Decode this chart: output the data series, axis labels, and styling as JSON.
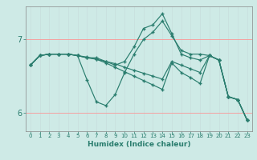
{
  "bg_color": "#ceeae6",
  "line_color": "#2a7d6e",
  "grid_color_h": "#f5a0a0",
  "grid_color_v": "#c8dedd",
  "xlabel": "Humidex (Indice chaleur)",
  "xlim": [
    -0.5,
    23.5
  ],
  "ylim": [
    5.75,
    7.45
  ],
  "yticks": [
    6,
    7
  ],
  "xticks": [
    0,
    1,
    2,
    3,
    4,
    5,
    6,
    7,
    8,
    9,
    10,
    11,
    12,
    13,
    14,
    15,
    16,
    17,
    18,
    19,
    20,
    21,
    22,
    23
  ],
  "lines": [
    {
      "x": [
        0,
        1,
        2,
        3,
        4,
        5,
        6,
        7,
        8,
        9,
        10,
        11,
        12,
        13,
        14,
        15,
        16,
        17,
        18,
        19,
        20,
        21,
        22,
        23
      ],
      "y": [
        6.65,
        6.78,
        6.8,
        6.8,
        6.8,
        6.78,
        6.45,
        6.15,
        6.1,
        6.25,
        6.55,
        6.8,
        7.0,
        7.1,
        7.25,
        7.05,
        6.85,
        6.8,
        6.8,
        6.78,
        6.72,
        6.22,
        6.18,
        5.9
      ]
    },
    {
      "x": [
        0,
        1,
        2,
        3,
        4,
        5,
        6,
        7,
        8,
        9,
        10,
        11,
        12,
        13,
        14,
        15,
        16,
        17,
        18,
        19,
        20,
        21,
        22,
        23
      ],
      "y": [
        6.65,
        6.78,
        6.8,
        6.8,
        6.8,
        6.78,
        6.75,
        6.75,
        6.7,
        6.65,
        6.7,
        6.9,
        7.15,
        7.2,
        7.35,
        7.08,
        6.8,
        6.75,
        6.72,
        6.78,
        6.72,
        6.22,
        6.18,
        5.9
      ]
    },
    {
      "x": [
        0,
        1,
        2,
        3,
        4,
        5,
        6,
        7,
        8,
        9,
        10,
        11,
        12,
        13,
        14,
        15,
        16,
        17,
        18,
        19,
        20,
        21,
        22,
        23
      ],
      "y": [
        6.65,
        6.78,
        6.8,
        6.8,
        6.8,
        6.78,
        6.75,
        6.73,
        6.7,
        6.67,
        6.62,
        6.58,
        6.54,
        6.5,
        6.46,
        6.7,
        6.65,
        6.6,
        6.55,
        6.78,
        6.72,
        6.22,
        6.18,
        5.9
      ]
    },
    {
      "x": [
        0,
        1,
        2,
        3,
        4,
        5,
        6,
        7,
        8,
        9,
        10,
        11,
        12,
        13,
        14,
        15,
        16,
        17,
        18,
        19,
        20,
        21,
        22,
        23
      ],
      "y": [
        6.65,
        6.78,
        6.8,
        6.8,
        6.8,
        6.78,
        6.76,
        6.73,
        6.68,
        6.62,
        6.56,
        6.5,
        6.44,
        6.38,
        6.32,
        6.68,
        6.55,
        6.48,
        6.4,
        6.78,
        6.72,
        6.22,
        6.18,
        5.9
      ]
    }
  ]
}
